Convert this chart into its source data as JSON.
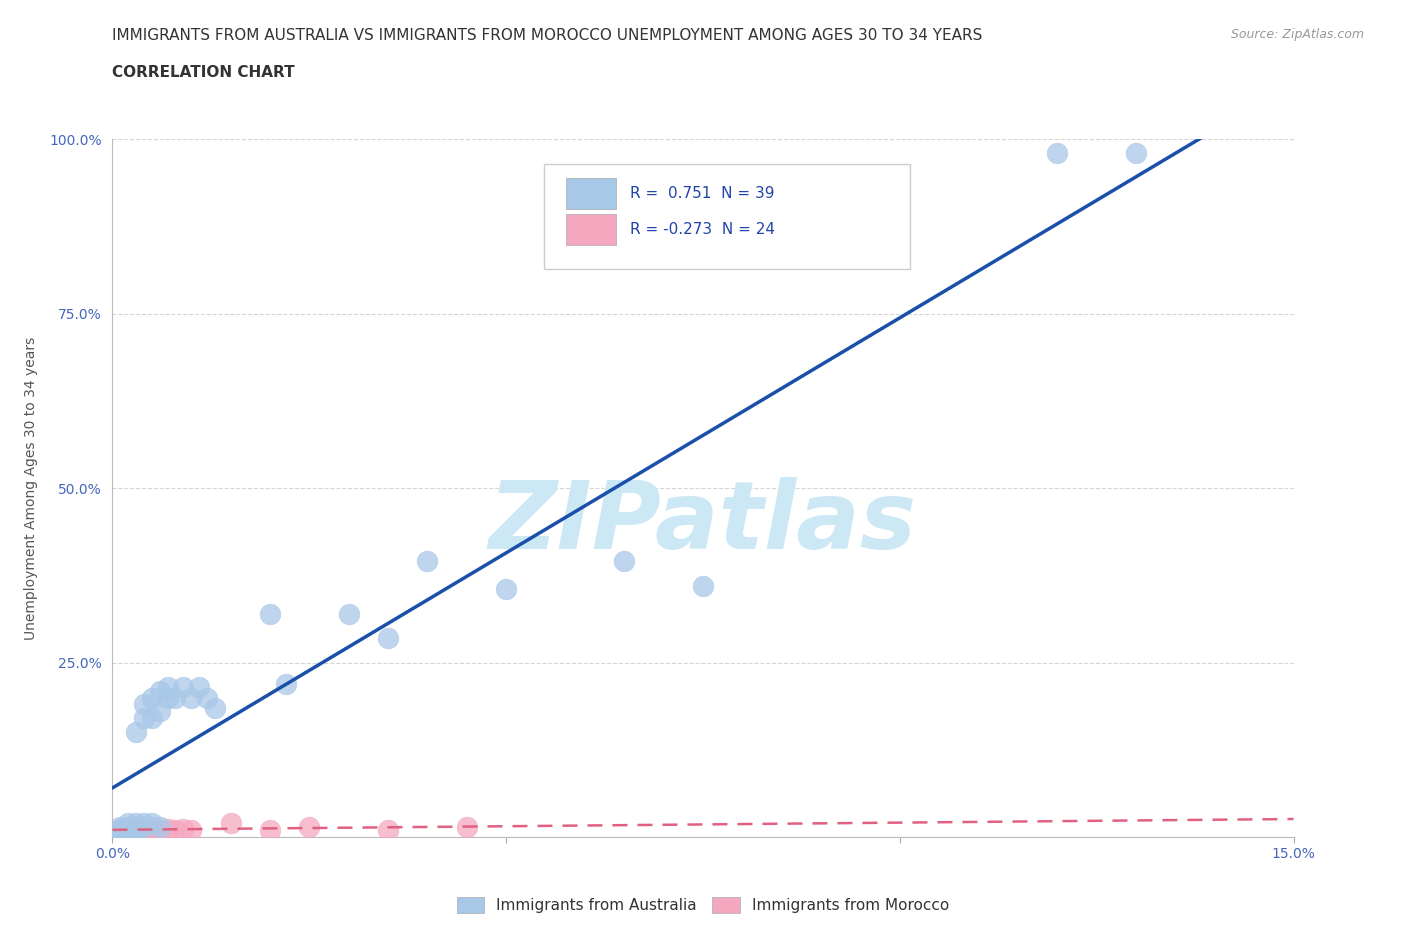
{
  "title_line1": "IMMIGRANTS FROM AUSTRALIA VS IMMIGRANTS FROM MOROCCO UNEMPLOYMENT AMONG AGES 30 TO 34 YEARS",
  "title_line2": "CORRELATION CHART",
  "source_text": "Source: ZipAtlas.com",
  "ylabel": "Unemployment Among Ages 30 to 34 years",
  "xlim": [
    0.0,
    0.15
  ],
  "ylim": [
    0.0,
    1.0
  ],
  "australia_R": 0.751,
  "australia_N": 39,
  "morocco_R": -0.273,
  "morocco_N": 24,
  "australia_color": "#a8c8e8",
  "morocco_color": "#f4a8c0",
  "australia_line_color": "#1a4faa",
  "morocco_line_color": "#e06080",
  "background_color": "#ffffff",
  "watermark_text": "ZIPatlas",
  "watermark_color": "#cde8f5",
  "australia_x": [
    0.001,
    0.001,
    0.001,
    0.002,
    0.002,
    0.002,
    0.002,
    0.003,
    0.003,
    0.003,
    0.003,
    0.004,
    0.004,
    0.004,
    0.004,
    0.005,
    0.005,
    0.005,
    0.006,
    0.006,
    0.006,
    0.007,
    0.007,
    0.008,
    0.009,
    0.01,
    0.011,
    0.012,
    0.013,
    0.02,
    0.022,
    0.03,
    0.035,
    0.04,
    0.05,
    0.065,
    0.075,
    0.12,
    0.13
  ],
  "australia_y": [
    0.005,
    0.01,
    0.015,
    0.005,
    0.01,
    0.015,
    0.02,
    0.01,
    0.015,
    0.02,
    0.15,
    0.015,
    0.02,
    0.17,
    0.19,
    0.02,
    0.17,
    0.2,
    0.015,
    0.18,
    0.21,
    0.2,
    0.215,
    0.2,
    0.215,
    0.2,
    0.215,
    0.2,
    0.185,
    0.32,
    0.22,
    0.32,
    0.285,
    0.395,
    0.355,
    0.395,
    0.36,
    0.98,
    0.98
  ],
  "morocco_x": [
    0.001,
    0.001,
    0.001,
    0.002,
    0.002,
    0.002,
    0.003,
    0.003,
    0.003,
    0.004,
    0.004,
    0.004,
    0.005,
    0.005,
    0.006,
    0.007,
    0.008,
    0.009,
    0.01,
    0.015,
    0.02,
    0.025,
    0.035,
    0.045
  ],
  "morocco_y": [
    0.005,
    0.008,
    0.012,
    0.005,
    0.01,
    0.015,
    0.005,
    0.01,
    0.015,
    0.008,
    0.012,
    0.015,
    0.01,
    0.015,
    0.01,
    0.012,
    0.01,
    0.012,
    0.01,
    0.02,
    0.01,
    0.015,
    0.01,
    0.015
  ],
  "legend_items": [
    {
      "label": "Immigrants from Australia",
      "color": "#a8c8e8"
    },
    {
      "label": "Immigrants from Morocco",
      "color": "#f4a8c0"
    }
  ],
  "title_fontsize": 11,
  "axis_label_fontsize": 10,
  "tick_fontsize": 10,
  "tick_color": "#4466bb"
}
